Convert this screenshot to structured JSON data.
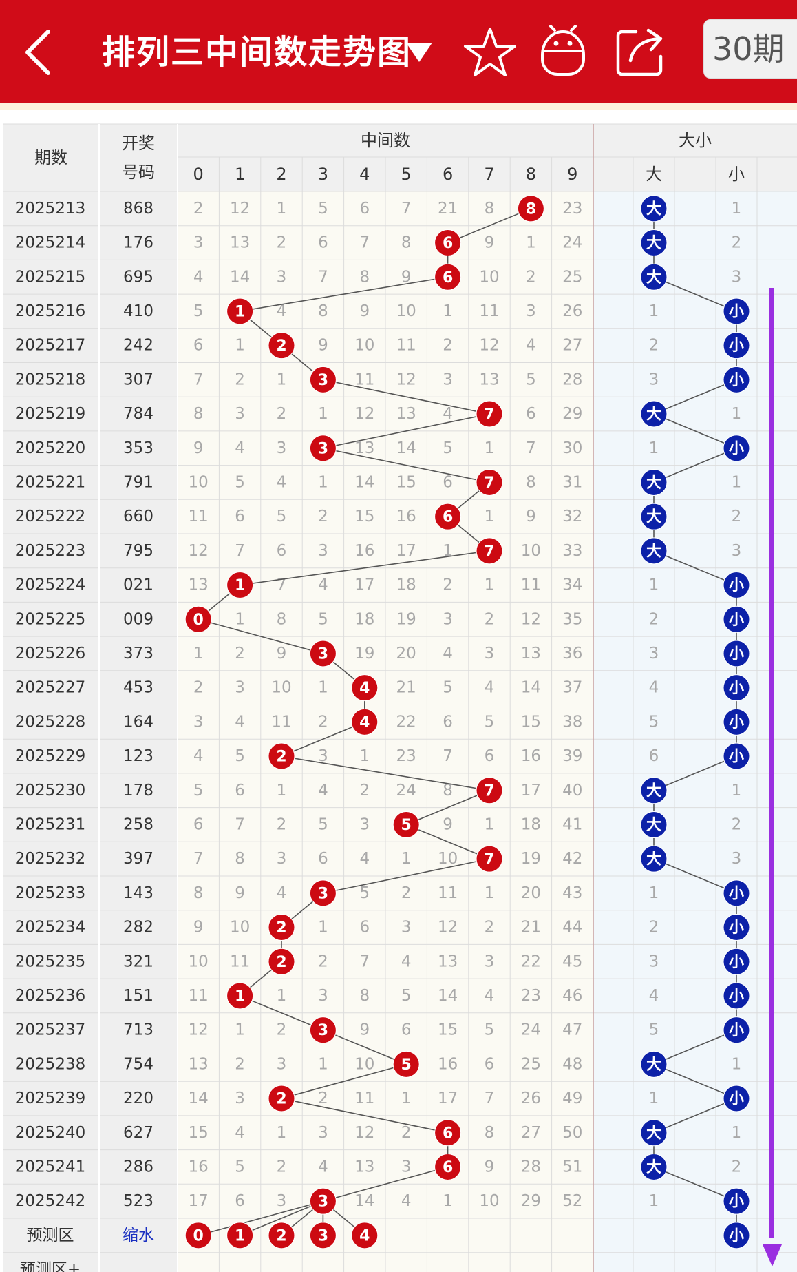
{
  "header": {
    "title": "排列三中间数走势图",
    "period_selector": "30期"
  },
  "table": {
    "col_issue": "期数",
    "col_draw_line1": "开奖",
    "col_draw_line2": "号码",
    "group_middle": "中间数",
    "group_size": "大小",
    "digit_headers": [
      "0",
      "1",
      "2",
      "3",
      "4",
      "5",
      "6",
      "7",
      "8",
      "9"
    ],
    "size_headers": [
      "大",
      "",
      "小"
    ],
    "rows": [
      {
        "issue": "2025213",
        "draw": "868",
        "middle": 8,
        "size": "大",
        "miss": [
          2,
          12,
          1,
          5,
          6,
          7,
          21,
          8,
          null,
          23
        ],
        "size_miss": [
          null,
          null,
          1
        ]
      },
      {
        "issue": "2025214",
        "draw": "176",
        "middle": 6,
        "size": "大",
        "miss": [
          3,
          13,
          2,
          6,
          7,
          8,
          null,
          9,
          1,
          24
        ],
        "size_miss": [
          null,
          null,
          2
        ]
      },
      {
        "issue": "2025215",
        "draw": "695",
        "middle": 6,
        "size": "大",
        "miss": [
          4,
          14,
          3,
          7,
          8,
          9,
          null,
          10,
          2,
          25
        ],
        "size_miss": [
          null,
          null,
          3
        ]
      },
      {
        "issue": "2025216",
        "draw": "410",
        "middle": 1,
        "size": "小",
        "miss": [
          5,
          null,
          4,
          8,
          9,
          10,
          1,
          11,
          3,
          26
        ],
        "size_miss": [
          1,
          null,
          null
        ]
      },
      {
        "issue": "2025217",
        "draw": "242",
        "middle": 2,
        "size": "小",
        "miss": [
          6,
          1,
          null,
          9,
          10,
          11,
          2,
          12,
          4,
          27
        ],
        "size_miss": [
          2,
          null,
          null
        ]
      },
      {
        "issue": "2025218",
        "draw": "307",
        "middle": 3,
        "size": "小",
        "miss": [
          7,
          2,
          1,
          null,
          11,
          12,
          3,
          13,
          5,
          28
        ],
        "size_miss": [
          3,
          null,
          null
        ]
      },
      {
        "issue": "2025219",
        "draw": "784",
        "middle": 7,
        "size": "大",
        "miss": [
          8,
          3,
          2,
          1,
          12,
          13,
          4,
          null,
          6,
          29
        ],
        "size_miss": [
          null,
          null,
          1
        ]
      },
      {
        "issue": "2025220",
        "draw": "353",
        "middle": 3,
        "size": "小",
        "miss": [
          9,
          4,
          3,
          null,
          13,
          14,
          5,
          1,
          7,
          30
        ],
        "size_miss": [
          1,
          null,
          null
        ]
      },
      {
        "issue": "2025221",
        "draw": "791",
        "middle": 7,
        "size": "大",
        "miss": [
          10,
          5,
          4,
          1,
          14,
          15,
          6,
          null,
          8,
          31
        ],
        "size_miss": [
          null,
          null,
          1
        ]
      },
      {
        "issue": "2025222",
        "draw": "660",
        "middle": 6,
        "size": "大",
        "miss": [
          11,
          6,
          5,
          2,
          15,
          16,
          null,
          1,
          9,
          32
        ],
        "size_miss": [
          null,
          null,
          2
        ]
      },
      {
        "issue": "2025223",
        "draw": "795",
        "middle": 7,
        "size": "大",
        "miss": [
          12,
          7,
          6,
          3,
          16,
          17,
          1,
          null,
          10,
          33
        ],
        "size_miss": [
          null,
          null,
          3
        ]
      },
      {
        "issue": "2025224",
        "draw": "021",
        "middle": 1,
        "size": "小",
        "miss": [
          13,
          null,
          7,
          4,
          17,
          18,
          2,
          1,
          11,
          34
        ],
        "size_miss": [
          1,
          null,
          null
        ]
      },
      {
        "issue": "2025225",
        "draw": "009",
        "middle": 0,
        "size": "小",
        "miss": [
          null,
          1,
          8,
          5,
          18,
          19,
          3,
          2,
          12,
          35
        ],
        "size_miss": [
          2,
          null,
          null
        ]
      },
      {
        "issue": "2025226",
        "draw": "373",
        "middle": 3,
        "size": "小",
        "miss": [
          1,
          2,
          9,
          null,
          19,
          20,
          4,
          3,
          13,
          36
        ],
        "size_miss": [
          3,
          null,
          null
        ]
      },
      {
        "issue": "2025227",
        "draw": "453",
        "middle": 4,
        "size": "小",
        "miss": [
          2,
          3,
          10,
          1,
          null,
          21,
          5,
          4,
          14,
          37
        ],
        "size_miss": [
          4,
          null,
          null
        ]
      },
      {
        "issue": "2025228",
        "draw": "164",
        "middle": 4,
        "size": "小",
        "miss": [
          3,
          4,
          11,
          2,
          null,
          22,
          6,
          5,
          15,
          38
        ],
        "size_miss": [
          5,
          null,
          null
        ]
      },
      {
        "issue": "2025229",
        "draw": "123",
        "middle": 2,
        "size": "小",
        "miss": [
          4,
          5,
          null,
          3,
          1,
          23,
          7,
          6,
          16,
          39
        ],
        "size_miss": [
          6,
          null,
          null
        ]
      },
      {
        "issue": "2025230",
        "draw": "178",
        "middle": 7,
        "size": "大",
        "miss": [
          5,
          6,
          1,
          4,
          2,
          24,
          8,
          null,
          17,
          40
        ],
        "size_miss": [
          null,
          null,
          1
        ]
      },
      {
        "issue": "2025231",
        "draw": "258",
        "middle": 5,
        "size": "大",
        "miss": [
          6,
          7,
          2,
          5,
          3,
          null,
          9,
          1,
          18,
          41
        ],
        "size_miss": [
          null,
          null,
          2
        ]
      },
      {
        "issue": "2025232",
        "draw": "397",
        "middle": 7,
        "size": "大",
        "miss": [
          7,
          8,
          3,
          6,
          4,
          1,
          10,
          null,
          19,
          42
        ],
        "size_miss": [
          null,
          null,
          3
        ]
      },
      {
        "issue": "2025233",
        "draw": "143",
        "middle": 3,
        "size": "小",
        "miss": [
          8,
          9,
          4,
          null,
          5,
          2,
          11,
          1,
          20,
          43
        ],
        "size_miss": [
          1,
          null,
          null
        ]
      },
      {
        "issue": "2025234",
        "draw": "282",
        "middle": 2,
        "size": "小",
        "miss": [
          9,
          10,
          null,
          1,
          6,
          3,
          12,
          2,
          21,
          44
        ],
        "size_miss": [
          2,
          null,
          null
        ]
      },
      {
        "issue": "2025235",
        "draw": "321",
        "middle": 2,
        "size": "小",
        "miss": [
          10,
          11,
          null,
          2,
          7,
          4,
          13,
          3,
          22,
          45
        ],
        "size_miss": [
          3,
          null,
          null
        ]
      },
      {
        "issue": "2025236",
        "draw": "151",
        "middle": 1,
        "size": "小",
        "miss": [
          11,
          null,
          1,
          3,
          8,
          5,
          14,
          4,
          23,
          46
        ],
        "size_miss": [
          4,
          null,
          null
        ]
      },
      {
        "issue": "2025237",
        "draw": "713",
        "middle": 3,
        "size": "小",
        "miss": [
          12,
          1,
          2,
          null,
          9,
          6,
          15,
          5,
          24,
          47
        ],
        "size_miss": [
          5,
          null,
          null
        ]
      },
      {
        "issue": "2025238",
        "draw": "754",
        "middle": 5,
        "size": "大",
        "miss": [
          13,
          2,
          3,
          1,
          10,
          null,
          16,
          6,
          25,
          48
        ],
        "size_miss": [
          null,
          null,
          1
        ]
      },
      {
        "issue": "2025239",
        "draw": "220",
        "middle": 2,
        "size": "小",
        "miss": [
          14,
          3,
          null,
          2,
          11,
          1,
          17,
          7,
          26,
          49
        ],
        "size_miss": [
          1,
          null,
          null
        ]
      },
      {
        "issue": "2025240",
        "draw": "627",
        "middle": 6,
        "size": "大",
        "miss": [
          15,
          4,
          1,
          3,
          12,
          2,
          null,
          8,
          27,
          50
        ],
        "size_miss": [
          null,
          null,
          1
        ]
      },
      {
        "issue": "2025241",
        "draw": "286",
        "middle": 6,
        "size": "大",
        "miss": [
          16,
          5,
          2,
          4,
          13,
          3,
          null,
          9,
          28,
          51
        ],
        "size_miss": [
          null,
          null,
          2
        ]
      },
      {
        "issue": "2025242",
        "draw": "523",
        "middle": 3,
        "size": "小",
        "miss": [
          17,
          6,
          3,
          null,
          14,
          4,
          1,
          10,
          29,
          52
        ],
        "size_miss": [
          1,
          null,
          null
        ]
      }
    ],
    "predict": {
      "label": "预测区",
      "tag": "缩水",
      "digits": [
        0,
        1,
        2,
        3,
        4
      ],
      "size": "小"
    },
    "predict_plus": {
      "label": "预测区+"
    }
  },
  "colors": {
    "header_red": "#d00c18",
    "ball_red": "#cc0a12",
    "ball_blue": "#0c21a8",
    "miss_gray": "#a8a8a8",
    "left_col_bg": "#efefef",
    "chart_bg": "#fbfaf3",
    "size_bg": "#f1f7fb",
    "purple_arrow": "#9a2fe0"
  },
  "icons": [
    "back-arrow-icon",
    "dropdown-triangle-icon",
    "star-icon",
    "robot-icon",
    "share-icon"
  ]
}
